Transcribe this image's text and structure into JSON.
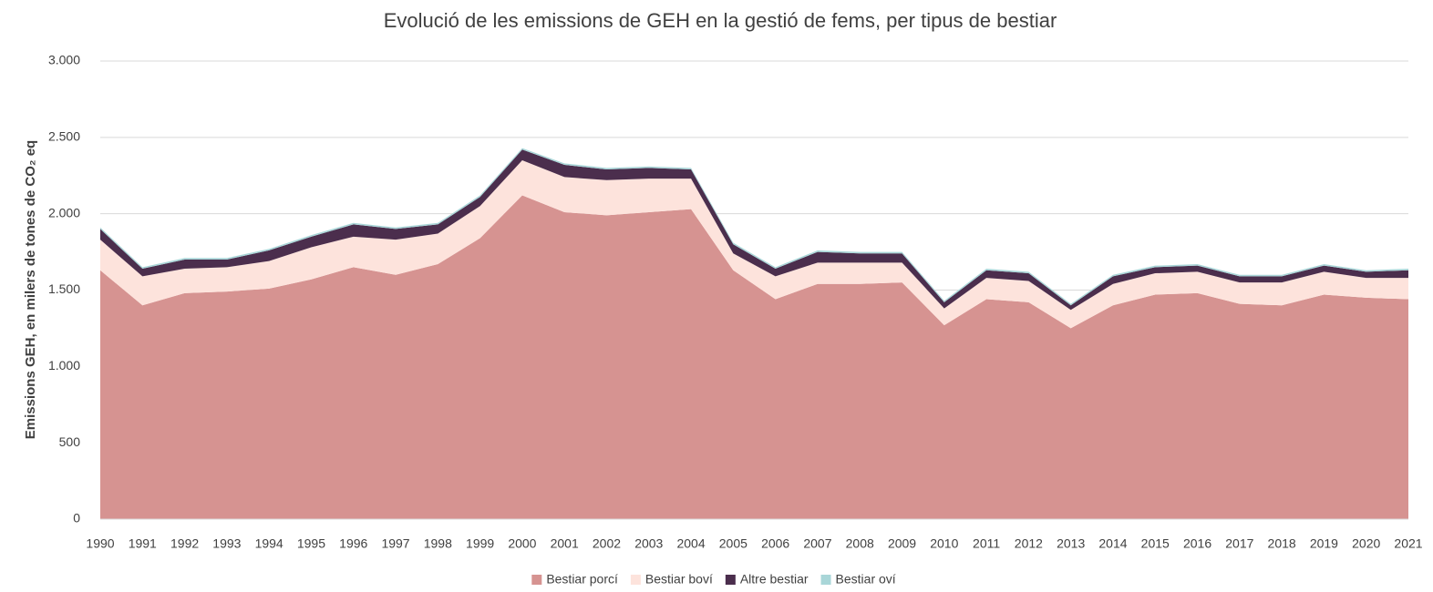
{
  "chart_data": {
    "type": "stacked_area",
    "title": "Evolució de les emissions de GEH en la gestió de fems, per tipus de bestiar",
    "y_label": "Emissions GEH, en milers de tones de CO₂ eq",
    "categories": [
      "1990",
      "1991",
      "1992",
      "1993",
      "1994",
      "1995",
      "1996",
      "1997",
      "1998",
      "1999",
      "2000",
      "2001",
      "2002",
      "2003",
      "2004",
      "2005",
      "2006",
      "2007",
      "2008",
      "2009",
      "2010",
      "2011",
      "2012",
      "2013",
      "2014",
      "2015",
      "2016",
      "2017",
      "2018",
      "2019",
      "2020",
      "2021"
    ],
    "series": [
      {
        "name": "Bestiar porcí",
        "color": "#d69391",
        "values": [
          1630,
          1400,
          1480,
          1490,
          1510,
          1570,
          1650,
          1600,
          1670,
          1840,
          2120,
          2010,
          1990,
          2010,
          2030,
          1630,
          1440,
          1540,
          1540,
          1550,
          1270,
          1440,
          1420,
          1250,
          1400,
          1470,
          1480,
          1410,
          1400,
          1470,
          1450,
          1440
        ]
      },
      {
        "name": "Bestiar boví",
        "color": "#fde3dc",
        "values": [
          200,
          190,
          160,
          160,
          180,
          210,
          200,
          230,
          200,
          210,
          230,
          230,
          230,
          220,
          200,
          110,
          150,
          140,
          140,
          130,
          110,
          140,
          140,
          120,
          140,
          140,
          140,
          140,
          150,
          150,
          130,
          140
        ]
      },
      {
        "name": "Altre bestiar",
        "color": "#4b2e4d",
        "values": [
          70,
          50,
          60,
          50,
          70,
          70,
          80,
          70,
          60,
          60,
          70,
          80,
          70,
          70,
          60,
          60,
          50,
          70,
          60,
          60,
          40,
          50,
          50,
          30,
          50,
          40,
          40,
          40,
          40,
          40,
          40,
          50
        ]
      },
      {
        "name": "Bestiar oví",
        "color": "#a9d6d8",
        "values": [
          10,
          10,
          10,
          10,
          10,
          10,
          10,
          10,
          10,
          10,
          10,
          10,
          10,
          10,
          10,
          10,
          10,
          10,
          10,
          10,
          10,
          10,
          10,
          10,
          10,
          10,
          10,
          10,
          10,
          10,
          10,
          10
        ]
      }
    ],
    "ylim": [
      0,
      3000
    ],
    "yticks": [
      0,
      500,
      {
        "value": 1000,
        "label": "1.000"
      },
      {
        "value": 1500,
        "label": "1.500"
      },
      {
        "value": 2000,
        "label": "2.000"
      },
      {
        "value": 2500,
        "label": "2.500"
      },
      {
        "value": 3000,
        "label": "3.000"
      }
    ],
    "grid": true,
    "legend": "bottom"
  }
}
